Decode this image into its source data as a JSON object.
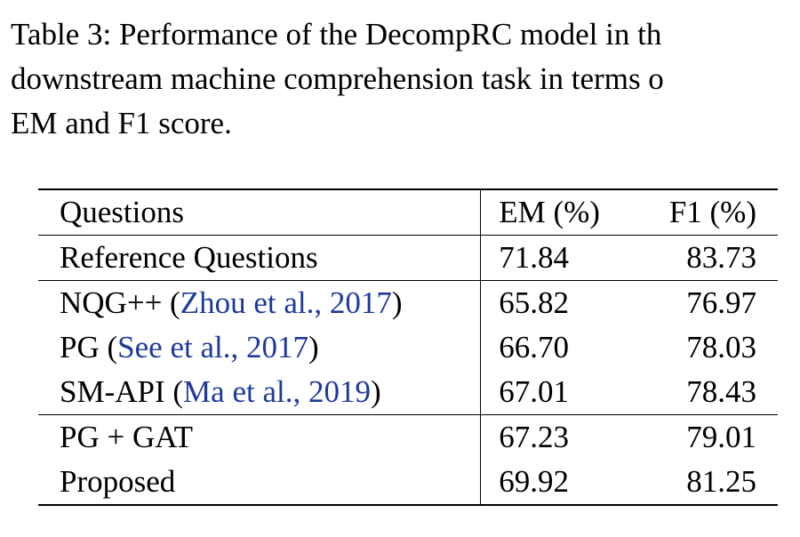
{
  "caption": {
    "lines": [
      "Table 3: Performance of the DecompRC model in th",
      "downstream machine comprehension task in terms o",
      "EM and F1 score."
    ]
  },
  "table": {
    "headers": {
      "questions": "Questions",
      "em": "EM (%)",
      "f1": "F1 (%)"
    },
    "rows": [
      {
        "name": "Reference Questions",
        "cite": "",
        "em": "71.84",
        "f1": "83.73"
      },
      {
        "name": "NQG++ (",
        "cite": "Zhou et al., 2017",
        "name_end": ")",
        "em": "65.82",
        "f1": "76.97"
      },
      {
        "name": "PG (",
        "cite": "See et al., 2017",
        "name_end": ")",
        "em": "66.70",
        "f1": "78.03"
      },
      {
        "name": "SM-API (",
        "cite": "Ma et al., 2019",
        "name_end": ")",
        "em": "67.01",
        "f1": "78.43"
      },
      {
        "name": "PG + GAT",
        "cite": "",
        "em": "67.23",
        "f1": "79.01"
      },
      {
        "name": "Proposed",
        "cite": "",
        "em": "69.92",
        "f1": "81.25"
      }
    ]
  },
  "colors": {
    "citation": "#1d3a9c",
    "text": "#000000"
  }
}
